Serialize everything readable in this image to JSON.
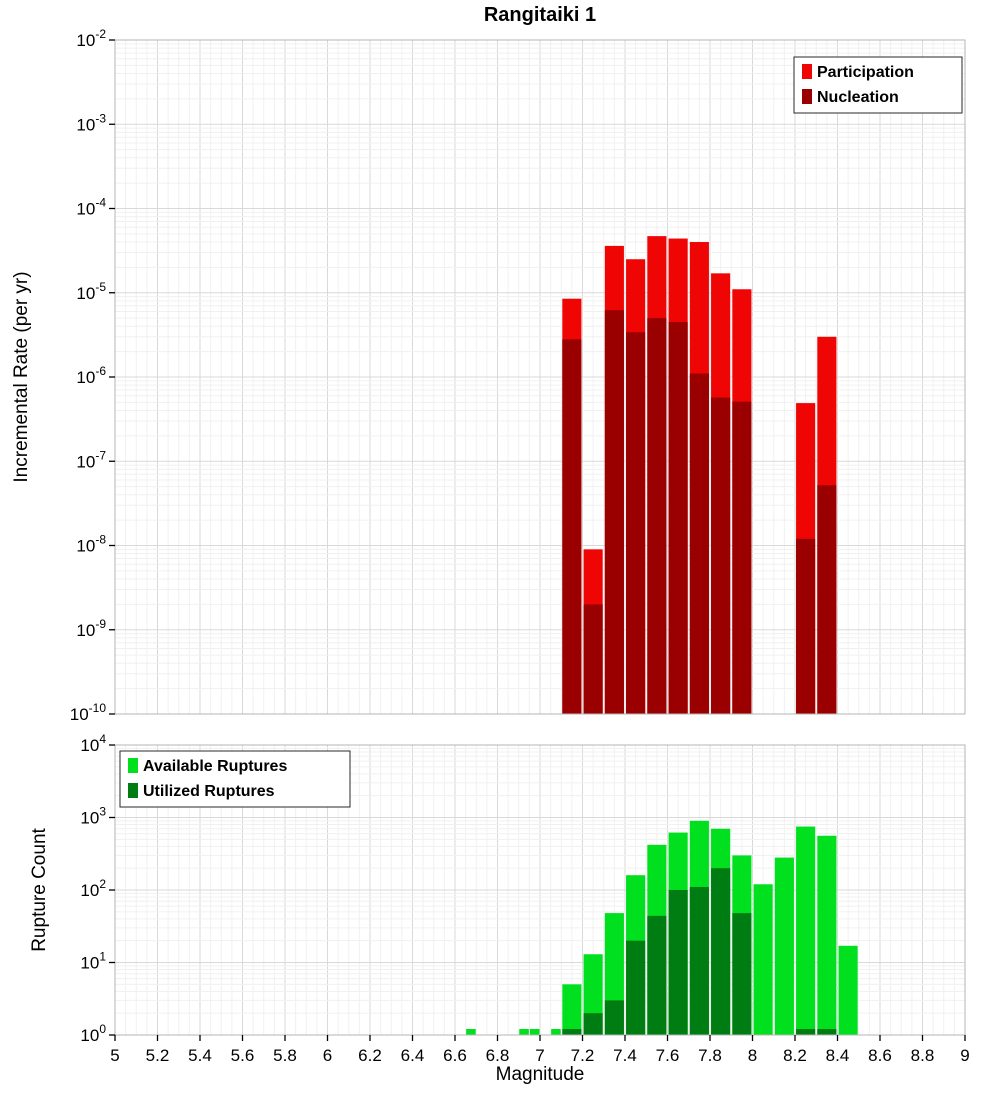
{
  "title": "Rangitaiki 1",
  "xlabel": "Magnitude",
  "log_base_label": "10",
  "x_tick_labels": [
    "5",
    "5.2",
    "5.4",
    "5.6",
    "5.8",
    "6",
    "6.2",
    "6.4",
    "6.6",
    "6.8",
    "7",
    "7.2",
    "7.4",
    "7.6",
    "7.8",
    "8",
    "8.2",
    "8.4",
    "8.6",
    "8.8",
    "9"
  ],
  "colors": {
    "participation": "#f00505",
    "nucleation": "#9b0000",
    "available": "#00e01e",
    "utilized": "#007d12",
    "grid_major": "#d9d9d9",
    "grid_minor": "#f0f0f0",
    "plot_border": "#b4b4b4",
    "axis_text": "#000000"
  },
  "legends": {
    "rate": [
      {
        "label": "Participation",
        "color_key": "participation"
      },
      {
        "label": "Nucleation",
        "color_key": "nucleation"
      }
    ],
    "count": [
      {
        "label": "Available Ruptures",
        "color_key": "available"
      },
      {
        "label": "Utilized Ruptures",
        "color_key": "utilized"
      }
    ]
  },
  "chart_data": [
    {
      "type": "bar",
      "title": "Rangitaiki 1",
      "ylabel": "Incremental Rate (per yr)",
      "xlabel": "Magnitude",
      "yscale": "log",
      "grid": true,
      "legend_position": "top-right",
      "xlim": [
        5,
        9
      ],
      "ylim": [
        1e-10,
        0.01
      ],
      "y_tick_exponents": [
        -2,
        -3,
        -4,
        -5,
        -6,
        -7,
        -8,
        -9,
        -10
      ],
      "bar_width": 0.1,
      "series_names": [
        "Participation",
        "Nucleation"
      ],
      "bars": [
        {
          "m": 7.15,
          "participation": 8.5e-06,
          "nucleation": 2.8e-06
        },
        {
          "m": 7.25,
          "participation": 9e-09,
          "nucleation": 2e-09
        },
        {
          "m": 7.35,
          "participation": 3.6e-05,
          "nucleation": 6.2e-06
        },
        {
          "m": 7.45,
          "participation": 2.5e-05,
          "nucleation": 3.4e-06
        },
        {
          "m": 7.55,
          "participation": 4.7e-05,
          "nucleation": 5e-06
        },
        {
          "m": 7.65,
          "participation": 4.4e-05,
          "nucleation": 4.5e-06
        },
        {
          "m": 7.75,
          "participation": 4e-05,
          "nucleation": 1.1e-06
        },
        {
          "m": 7.85,
          "participation": 1.7e-05,
          "nucleation": 5.7e-07
        },
        {
          "m": 7.95,
          "participation": 1.1e-05,
          "nucleation": 5.1e-07
        },
        {
          "m": 8.25,
          "participation": 4.9e-07,
          "nucleation": 1.2e-08
        },
        {
          "m": 8.35,
          "participation": 3e-06,
          "nucleation": 5.2e-08
        }
      ]
    },
    {
      "type": "bar",
      "ylabel": "Rupture Count",
      "xlabel": "Magnitude",
      "yscale": "log",
      "grid": true,
      "legend_position": "top-left",
      "xlim": [
        5,
        9
      ],
      "ylim": [
        1,
        10000
      ],
      "y_tick_exponents": [
        4,
        3,
        2,
        1,
        0
      ],
      "bar_width": 0.1,
      "series_names": [
        "Available Ruptures",
        "Utilized Ruptures"
      ],
      "bars": [
        {
          "m": 6.675,
          "w": 0.05,
          "available": 1,
          "utilized": 0
        },
        {
          "m": 6.925,
          "w": 0.05,
          "available": 1,
          "utilized": 0
        },
        {
          "m": 6.975,
          "w": 0.05,
          "available": 1,
          "utilized": 0
        },
        {
          "m": 7.075,
          "w": 0.05,
          "available": 1,
          "utilized": 0
        },
        {
          "m": 7.15,
          "available": 5,
          "utilized": 1
        },
        {
          "m": 7.25,
          "available": 13,
          "utilized": 2
        },
        {
          "m": 7.35,
          "available": 48,
          "utilized": 3
        },
        {
          "m": 7.45,
          "available": 160,
          "utilized": 20
        },
        {
          "m": 7.55,
          "available": 420,
          "utilized": 44
        },
        {
          "m": 7.65,
          "available": 620,
          "utilized": 100
        },
        {
          "m": 7.75,
          "available": 900,
          "utilized": 110
        },
        {
          "m": 7.85,
          "available": 700,
          "utilized": 200
        },
        {
          "m": 7.95,
          "available": 300,
          "utilized": 48
        },
        {
          "m": 8.05,
          "available": 120,
          "utilized": 0
        },
        {
          "m": 8.15,
          "available": 280,
          "utilized": 0
        },
        {
          "m": 8.25,
          "available": 750,
          "utilized": 1
        },
        {
          "m": 8.35,
          "available": 560,
          "utilized": 1
        },
        {
          "m": 8.45,
          "available": 17,
          "utilized": 0
        }
      ]
    }
  ]
}
